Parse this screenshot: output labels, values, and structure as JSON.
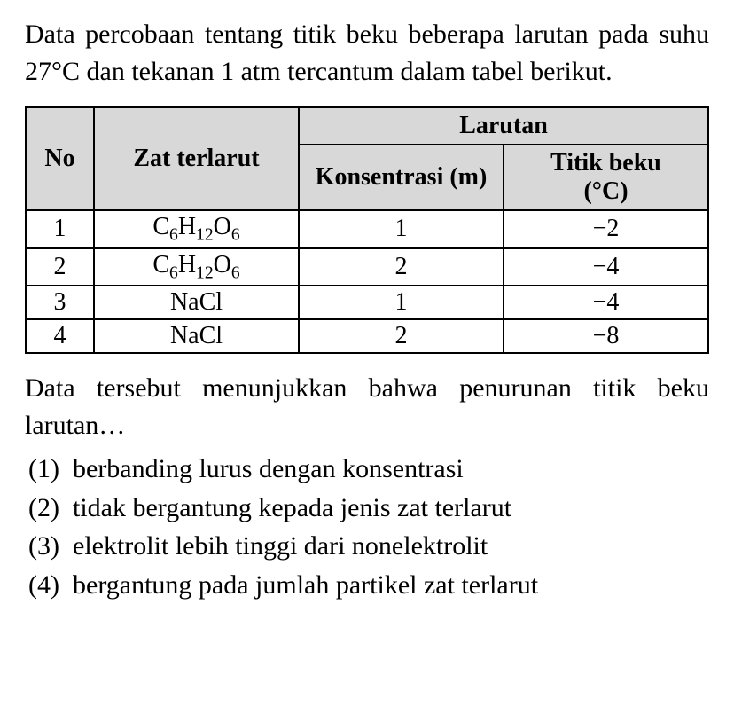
{
  "intro": "Data percobaan tentang titik beku beberapa larutan pada suhu 27°C dan tekanan 1 atm tercantum dalam tabel berikut.",
  "table": {
    "header": {
      "no": "No",
      "zat": "Zat terlarut",
      "larutan": "Larutan",
      "konsentrasi": "Konsentrasi (m)",
      "titik_beku_label": "Titik beku",
      "titik_beku_unit": "(°C)"
    },
    "rows": [
      {
        "no": "1",
        "zat_html": "C6H12O6",
        "konsentrasi": "1",
        "titik": "−2"
      },
      {
        "no": "2",
        "zat_html": "C6H12O6",
        "konsentrasi": "2",
        "titik": "−4"
      },
      {
        "no": "3",
        "zat_html": "NaCl",
        "konsentrasi": "1",
        "titik": "−4"
      },
      {
        "no": "4",
        "zat_html": "NaCl",
        "konsentrasi": "2",
        "titik": "−8"
      }
    ],
    "header_bg": "#d8d8d8",
    "border_color": "#000000"
  },
  "question": "Data tersebut menunjukkan bahwa penurunan titik beku larutan…",
  "options": [
    {
      "num": "(1)",
      "text": "berbanding lurus dengan konsentrasi"
    },
    {
      "num": "(2)",
      "text": "tidak bergantung kepada jenis zat terlarut"
    },
    {
      "num": "(3)",
      "text": "elektrolit lebih tinggi dari nonelektrolit"
    },
    {
      "num": "(4)",
      "text": "bergantung pada jumlah partikel zat terlarut"
    }
  ],
  "colors": {
    "background": "#ffffff",
    "text": "#000000"
  },
  "typography": {
    "font_family": "Times New Roman",
    "body_fontsize": 30,
    "table_fontsize": 28
  }
}
